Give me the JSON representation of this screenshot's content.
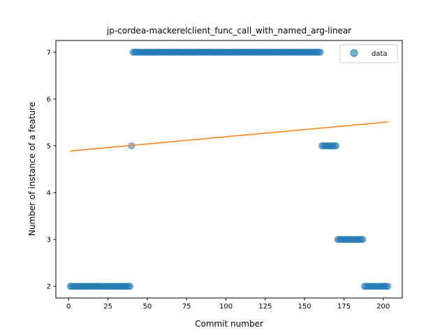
{
  "chart_data": {
    "type": "scatter",
    "title": "jp-cordea-mackerelclient_func_call_with_named_arg-linear",
    "xlabel": "Commit number",
    "ylabel": "Number of instance of a feature",
    "xlim": [
      -8.1,
      212.1
    ],
    "ylim": [
      1.75,
      7.25
    ],
    "xticks": [
      0,
      25,
      50,
      75,
      100,
      125,
      150,
      175,
      200
    ],
    "yticks": [
      2,
      3,
      4,
      5,
      6,
      7
    ],
    "grid": false,
    "legend": {
      "position": "top-right",
      "entries": [
        "data"
      ]
    },
    "segments": [
      {
        "x_start": 1,
        "x_end": 39,
        "y": 2
      },
      {
        "x_start": 40,
        "x_end": 40,
        "y": 5
      },
      {
        "x_start": 41,
        "x_end": 160,
        "y": 7
      },
      {
        "x_start": 161,
        "x_end": 170,
        "y": 5
      },
      {
        "x_start": 171,
        "x_end": 187,
        "y": 3
      },
      {
        "x_start": 188,
        "x_end": 203,
        "y": 2
      }
    ],
    "series": [
      {
        "name": "data",
        "kind": "scatter",
        "color": "#1f77b4"
      },
      {
        "kind": "line",
        "color": "#ff7f0e",
        "x": [
          1,
          203
        ],
        "y": [
          4.89,
          5.51
        ]
      }
    ]
  }
}
